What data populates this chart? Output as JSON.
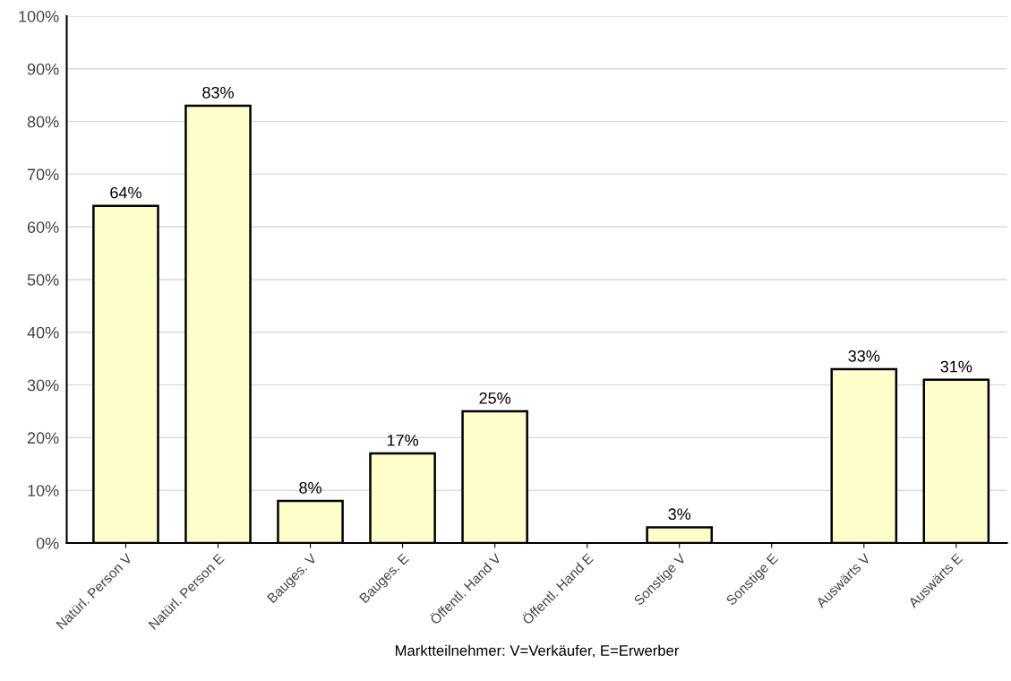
{
  "chart_data": {
    "type": "bar",
    "categories": [
      "Natürl. Person V",
      "Natürl. Person E",
      "Bauges. V",
      "Bauges. E",
      "Öffentl. Hand V",
      "Öffentl. Hand E",
      "Sonstige V",
      "Sonstige E",
      "Auswärts V",
      "Auswärts E"
    ],
    "values": [
      64,
      83,
      8,
      17,
      25,
      null,
      3,
      null,
      33,
      31
    ],
    "value_labels": [
      "64%",
      "83%",
      "8%",
      "17%",
      "25%",
      null,
      "3%",
      null,
      "33%",
      "31%"
    ],
    "color": "#ffffcc",
    "xlabel": "Marktteilnehmer: V=Verkäufer, E=Erwerber",
    "ylim": [
      0,
      100
    ],
    "yticks": [
      {
        "value": 0,
        "label": "0%"
      },
      {
        "value": 10,
        "label": "10%"
      },
      {
        "value": 20,
        "label": "20%"
      },
      {
        "value": 30,
        "label": "30%"
      },
      {
        "value": 40,
        "label": "40%"
      },
      {
        "value": 50,
        "label": "50%"
      },
      {
        "value": 60,
        "label": "60%"
      },
      {
        "value": 70,
        "label": "70%"
      },
      {
        "value": 80,
        "label": "80%"
      },
      {
        "value": 90,
        "label": "90%"
      },
      {
        "value": 100,
        "label": "100%"
      }
    ],
    "grid": "y"
  }
}
